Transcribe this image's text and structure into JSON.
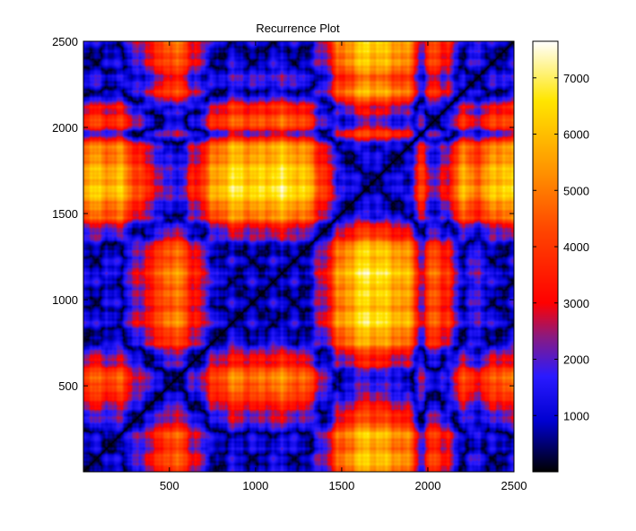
{
  "chart_data": {
    "type": "heatmap",
    "title": "Recurrence Plot",
    "xlabel": "",
    "ylabel": "",
    "xlim": [
      1,
      2500
    ],
    "ylim": [
      1,
      2500
    ],
    "x_ticks": [
      500,
      1000,
      1500,
      2000,
      2500
    ],
    "y_ticks": [
      500,
      1000,
      1500,
      2000,
      2500
    ],
    "x_tick_labels": [
      "500",
      "1000",
      "1500",
      "2000",
      "2500"
    ],
    "y_tick_labels": [
      "500",
      "1000",
      "1500",
      "2000",
      "2500"
    ],
    "grid": false,
    "colormap": "black-blue-red-yellow-white",
    "colorbar": {
      "range": [
        0,
        7650
      ],
      "ticks": [
        1000,
        2000,
        3000,
        4000,
        5000,
        6000,
        7000
      ],
      "tick_labels": [
        "1000",
        "2000",
        "3000",
        "4000",
        "5000",
        "6000",
        "7000"
      ]
    },
    "colormap_stops": [
      {
        "value": 0,
        "color": "#000000"
      },
      {
        "value": 900,
        "color": "#0000d0"
      },
      {
        "value": 1700,
        "color": "#2a1aff"
      },
      {
        "value": 2400,
        "color": "#8a1a80"
      },
      {
        "value": 3000,
        "color": "#ff0000"
      },
      {
        "value": 4300,
        "color": "#ff4600"
      },
      {
        "value": 5300,
        "color": "#ff9000"
      },
      {
        "value": 6600,
        "color": "#ffe600"
      },
      {
        "value": 7650,
        "color": "#ffffff"
      }
    ],
    "signal_levels": {
      "x": [
        0,
        60,
        120,
        200,
        300,
        400,
        500,
        560,
        640,
        760,
        860,
        1000,
        1150,
        1300,
        1400,
        1480,
        1560,
        1650,
        1720,
        1800,
        1900,
        1960,
        2040,
        2100,
        2200,
        2300,
        2400,
        2500
      ],
      "level": [
        0.4,
        0.2,
        0.5,
        0.28,
        1.0,
        1.6,
        2.25,
        2.2,
        1.55,
        0.55,
        0.05,
        0.2,
        0.0,
        0.3,
        1.3,
        2.2,
        2.7,
        3.0,
        2.85,
        2.7,
        2.4,
        1.2,
        2.1,
        1.7,
        0.5,
        0.8,
        0.2,
        0.3
      ]
    }
  }
}
